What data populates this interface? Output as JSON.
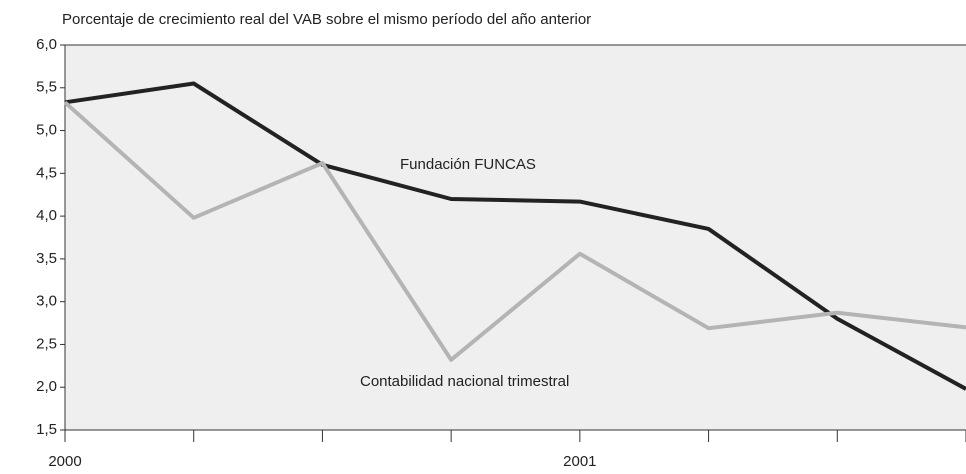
{
  "chart_data": {
    "type": "line",
    "title": "Porcentaje de crecimiento real del VAB sobre el mismo período del año anterior",
    "categories": [
      "2000",
      null,
      null,
      null,
      "2001",
      null,
      null,
      null
    ],
    "series": [
      {
        "name": "Fundación FUNCAS",
        "color": "#222222",
        "values": [
          5.33,
          5.55,
          4.6,
          4.2,
          4.17,
          3.85,
          2.8,
          1.98
        ]
      },
      {
        "name": "Contabilidad nacional trimestral",
        "color": "#b4b4b4",
        "values": [
          5.33,
          3.98,
          4.62,
          2.32,
          3.56,
          2.69,
          2.87,
          2.7
        ]
      }
    ],
    "ylim": [
      1.5,
      6.0
    ],
    "yticks": [
      {
        "value": 1.5,
        "label": "1,5"
      },
      {
        "value": 2.0,
        "label": "2,0"
      },
      {
        "value": 2.5,
        "label": "2,5"
      },
      {
        "value": 3.0,
        "label": "3,0"
      },
      {
        "value": 3.5,
        "label": "3,5"
      },
      {
        "value": 4.0,
        "label": "4,0"
      },
      {
        "value": 4.5,
        "label": "4,5"
      },
      {
        "value": 5.0,
        "label": "5,0"
      },
      {
        "value": 5.5,
        "label": "5,5"
      },
      {
        "value": 6.0,
        "label": "6,0"
      }
    ]
  }
}
